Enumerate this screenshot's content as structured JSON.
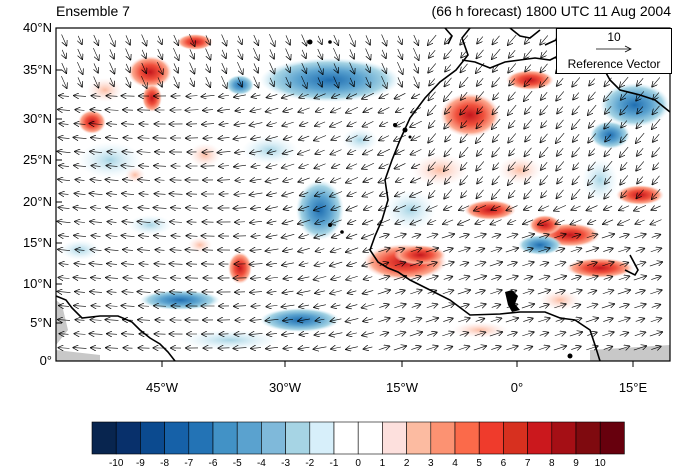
{
  "header": {
    "left_title": "Ensemble 7",
    "right_title": "(66 h forecast) 1800 UTC 11 Aug 2004"
  },
  "map": {
    "latitude_labels": [
      "40°N",
      "35°N",
      "30°N",
      "25°N",
      "20°N",
      "15°N",
      "10°N",
      "5°N",
      "0°"
    ],
    "longitude_labels": [
      "45°W",
      "30°W",
      "15°W",
      "0°",
      "15°E"
    ],
    "lat_range": [
      0,
      40
    ],
    "lon_range": [
      -57,
      20
    ],
    "land_color": "#c8c8c8",
    "coastline_color": "#000000"
  },
  "reference_vector": {
    "magnitude": "10",
    "label": "Reference Vector"
  },
  "colorbar": {
    "ticks": [
      "-10",
      "-9",
      "-8",
      "-7",
      "-6",
      "-5",
      "-4",
      "-3",
      "-2",
      "-1",
      "0",
      "1",
      "2",
      "3",
      "4",
      "5",
      "6",
      "7",
      "8",
      "9",
      "10"
    ],
    "colors": [
      "#08254f",
      "#08306b",
      "#0b4a8f",
      "#1661a8",
      "#2373b5",
      "#4292c6",
      "#5aa2cf",
      "#7fb9da",
      "#a6d4e4",
      "#d7effa",
      "#ffffff",
      "#ffffff",
      "#fde0dd",
      "#fcbba1",
      "#fc9272",
      "#fb6a4a",
      "#ef3b2c",
      "#d7301f",
      "#cb181d",
      "#a50f15",
      "#7f0a0f",
      "#67000d"
    ]
  }
}
